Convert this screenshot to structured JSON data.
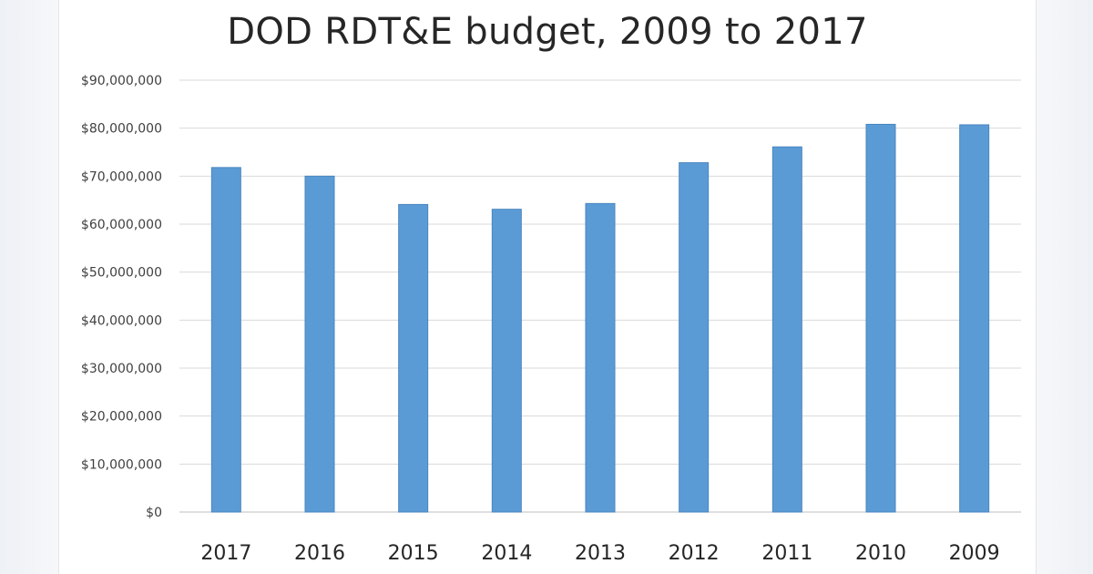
{
  "chart_data": {
    "type": "bar",
    "title": "DOD RDT&E budget, 2009 to 2017",
    "xlabel": "",
    "ylabel": "",
    "categories": [
      "2017",
      "2016",
      "2015",
      "2014",
      "2013",
      "2012",
      "2011",
      "2010",
      "2009"
    ],
    "values": [
      71800000,
      70000000,
      64100000,
      63100000,
      64300000,
      72800000,
      76100000,
      80800000,
      80700000
    ],
    "ylim": [
      0,
      90000000
    ],
    "yticks": [
      0,
      10000000,
      20000000,
      30000000,
      40000000,
      50000000,
      60000000,
      70000000,
      80000000,
      90000000
    ],
    "ytick_labels": [
      "$0",
      "$10,000,000",
      "$20,000,000",
      "$30,000,000",
      "$40,000,000",
      "$50,000,000",
      "$60,000,000",
      "$70,000,000",
      "$80,000,000",
      "$90,000,000"
    ],
    "grid": true,
    "legend": "none",
    "bar_color": "#5b9bd5"
  }
}
